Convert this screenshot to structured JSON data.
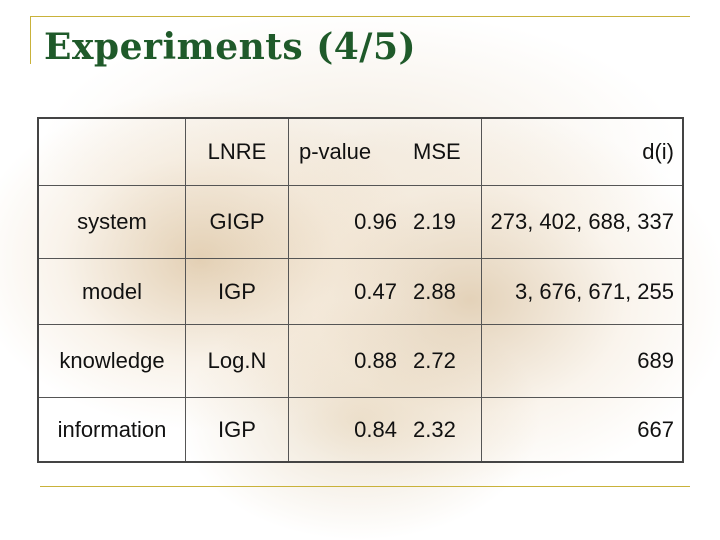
{
  "slide": {
    "title": "Experiments (4/5)"
  },
  "table": {
    "headers": {
      "row_label": "",
      "lnre": "LNRE",
      "p_value": "p-value",
      "mse": "MSE",
      "d_i": "d(i)"
    },
    "rows": [
      {
        "label": "system",
        "lnre": "GIGP",
        "p_value": "0.96",
        "mse": "2.19",
        "d_i": "273, 402, 688, 337"
      },
      {
        "label": "model",
        "lnre": "IGP",
        "p_value": "0.47",
        "mse": "2.88",
        "d_i": "3, 676, 671, 255"
      },
      {
        "label": "knowledge",
        "lnre": "Log.N",
        "p_value": "0.88",
        "mse": "2.72",
        "d_i": "689"
      },
      {
        "label": "information",
        "lnre": "IGP",
        "p_value": "0.84",
        "mse": "2.32",
        "d_i": "667"
      }
    ]
  },
  "colors": {
    "title": "#1f5a2a",
    "rule": "#c9b23a"
  }
}
